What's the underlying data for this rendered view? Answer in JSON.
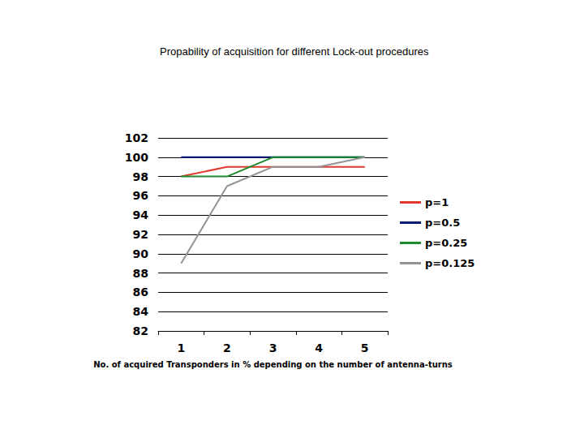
{
  "chart_data": {
    "type": "line",
    "title": "Propability of acquisition for different Lock-out procedures",
    "x_label": "No. of acquired Transponders in % depending on the number of antenna-turns",
    "categories": [
      "1",
      "2",
      "3",
      "4",
      "5"
    ],
    "series": [
      {
        "name": "p=1",
        "color": "#e03a2f",
        "values": [
          98,
          99,
          99,
          99,
          99
        ]
      },
      {
        "name": "p=0.5",
        "color": "#0a1a7a",
        "values": [
          100,
          100,
          100,
          100,
          100
        ]
      },
      {
        "name": "p=0.25",
        "color": "#1e8a2e",
        "values": [
          98,
          98,
          100,
          100,
          100
        ]
      },
      {
        "name": "p=0.125",
        "color": "#939393",
        "values": [
          89,
          97,
          99,
          99,
          100
        ]
      }
    ],
    "ylim": [
      82,
      102
    ],
    "yticks": [
      82,
      84,
      86,
      88,
      90,
      92,
      94,
      96,
      98,
      100,
      102
    ],
    "grid": true,
    "legend": "right"
  }
}
